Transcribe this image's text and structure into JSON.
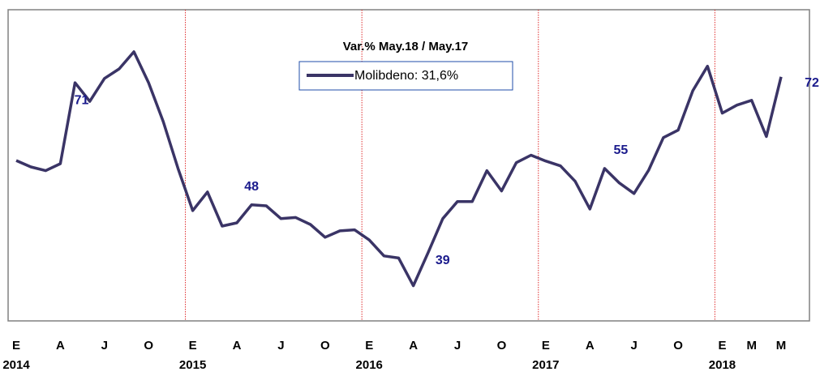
{
  "chart_data": {
    "type": "line",
    "legend_title": "Var.% May.18 / May.17",
    "categories": [
      "E",
      null,
      null,
      "A",
      null,
      null,
      "J",
      null,
      null,
      "O",
      null,
      null,
      "E",
      null,
      null,
      "A",
      null,
      null,
      "J",
      null,
      null,
      "O",
      null,
      null,
      "E",
      null,
      null,
      "A",
      null,
      null,
      "J",
      null,
      null,
      "O",
      null,
      null,
      "E",
      null,
      null,
      "A",
      null,
      null,
      "J",
      null,
      null,
      "O",
      null,
      null,
      "E",
      null,
      "M",
      null,
      "M"
    ],
    "years": [
      "2014",
      "2015",
      "2016",
      "2017",
      "2018"
    ],
    "series": [
      {
        "name": "Molibdeno: 31,6%",
        "color": "#3a3466",
        "values": [
          56.3,
          55.1,
          54.4,
          55.7,
          70.9,
          67.4,
          71.7,
          73.5,
          76.7,
          70.9,
          63.6,
          54.8,
          46.9,
          50.4,
          44.0,
          44.6,
          48.0,
          47.8,
          45.4,
          45.6,
          44.3,
          41.9,
          43.1,
          43.3,
          41.4,
          38.4,
          38.0,
          32.8,
          39.0,
          45.4,
          48.6,
          48.6,
          54.4,
          50.6,
          55.9,
          57.3,
          56.2,
          55.3,
          52.4,
          47.2,
          54.8,
          52.1,
          50.1,
          54.5,
          60.6,
          62.0,
          69.4,
          74.0,
          65.2,
          66.7,
          67.6,
          60.8,
          72.0
        ],
        "value_labels": [
          null,
          null,
          null,
          null,
          "71",
          null,
          null,
          null,
          null,
          null,
          null,
          null,
          null,
          null,
          null,
          null,
          "48",
          null,
          null,
          null,
          null,
          null,
          null,
          null,
          null,
          null,
          null,
          null,
          "39",
          null,
          null,
          null,
          null,
          null,
          null,
          null,
          null,
          null,
          null,
          null,
          "55",
          null,
          null,
          null,
          null,
          null,
          null,
          null,
          null,
          null,
          null,
          null,
          "72"
        ]
      }
    ],
    "ylim": [
      26.2,
      84.6
    ],
    "grid": false
  }
}
